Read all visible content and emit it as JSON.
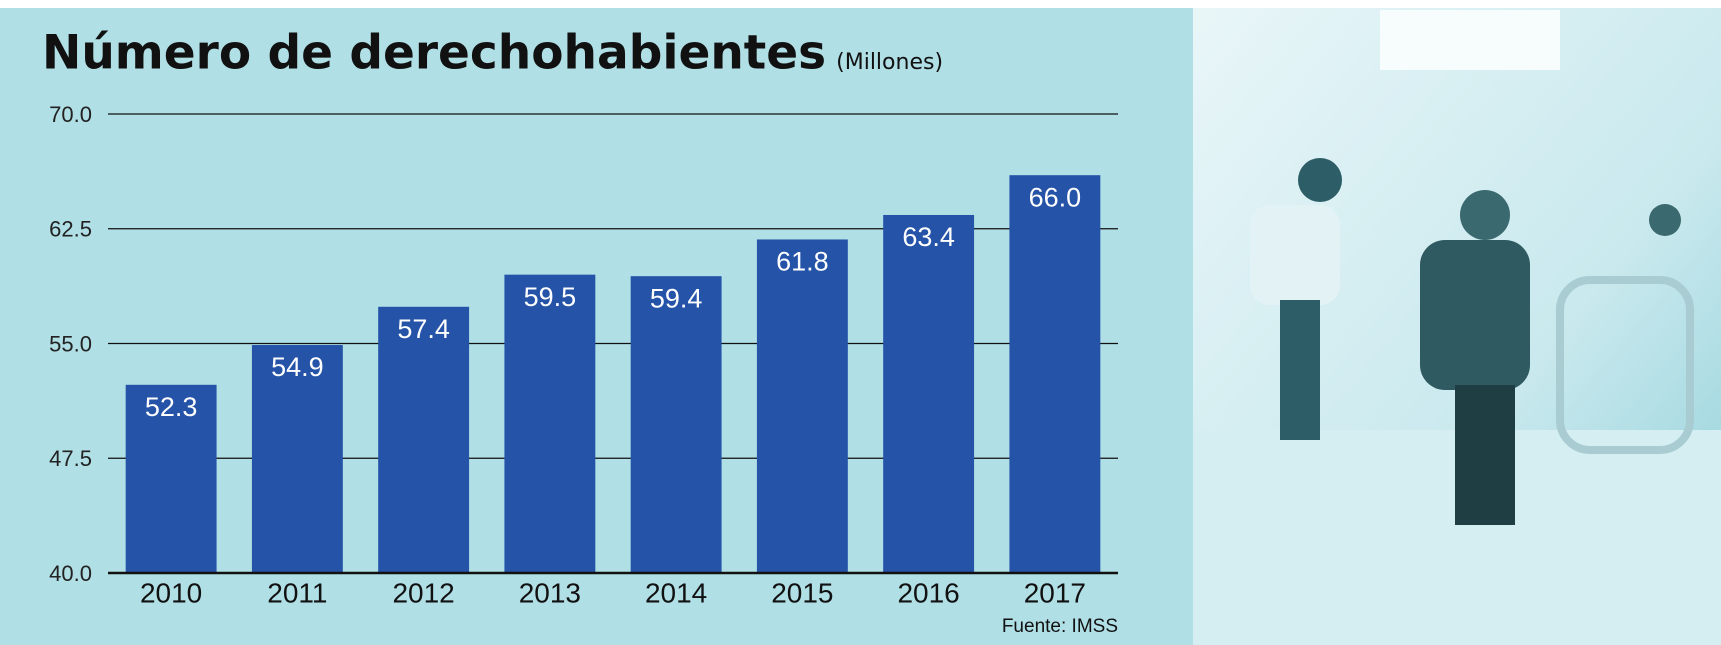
{
  "chart_data": {
    "type": "bar",
    "title": "Número de derechohabientes",
    "subtitle": "(Millones)",
    "categories": [
      "2010",
      "2011",
      "2012",
      "2013",
      "2014",
      "2015",
      "2016",
      "2017"
    ],
    "values": [
      52.3,
      54.9,
      57.4,
      59.5,
      59.4,
      61.8,
      63.4,
      66.0
    ],
    "value_labels": [
      "52.3",
      "54.9",
      "57.4",
      "59.5",
      "59.4",
      "61.8",
      "63.4",
      "66.0"
    ],
    "color": "#2453a7",
    "ylim": [
      40,
      70
    ],
    "yticks": [
      {
        "value": 40,
        "label": "40.0"
      },
      {
        "value": 47.5,
        "label": "47.5"
      },
      {
        "value": 55,
        "label": "55.0"
      },
      {
        "value": 62.5,
        "label": "62.5"
      },
      {
        "value": 70,
        "label": "70.0"
      }
    ],
    "grid": true,
    "source": "Fuente: IMSS"
  }
}
